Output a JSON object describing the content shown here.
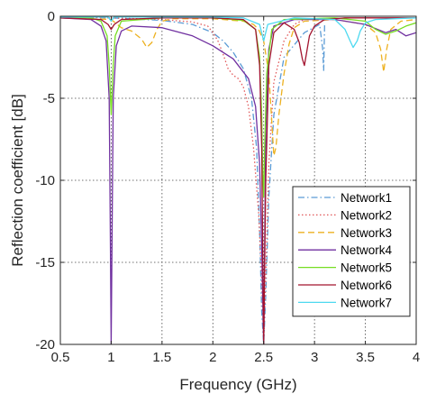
{
  "chart_data": {
    "type": "line",
    "title": "",
    "xlabel": "Frequency (GHz)",
    "ylabel": "Reflection coefficient [dB]",
    "xlim": [
      0.5,
      4
    ],
    "ylim": [
      -20,
      0
    ],
    "xticks": [
      0.5,
      1,
      1.5,
      2,
      2.5,
      3,
      3.5,
      4
    ],
    "xtick_labels": [
      "0.5",
      "1",
      "1.5",
      "2",
      "2.5",
      "3",
      "3.5",
      "4"
    ],
    "yticks": [
      0,
      -5,
      -10,
      -15,
      -20
    ],
    "ytick_labels": [
      "0",
      "-5",
      "-10",
      "-15",
      "-20"
    ],
    "grid": true,
    "legend_position": "bottom-right",
    "series": [
      {
        "name": "Network1",
        "color": "#5B9BD5",
        "dash": "dashdot",
        "x": [
          0.5,
          1.0,
          1.5,
          1.8,
          2.0,
          2.1,
          2.2,
          2.3,
          2.38,
          2.43,
          2.46,
          2.48,
          2.5,
          2.52,
          2.55,
          2.6,
          2.7,
          2.9,
          3.05,
          3.08,
          3.09,
          3.1
        ],
        "y": [
          -0.05,
          -0.1,
          -0.25,
          -0.5,
          -1.0,
          -1.5,
          -2.2,
          -3.2,
          -5.0,
          -8.0,
          -13.0,
          -18.0,
          -20.0,
          -17.0,
          -11.0,
          -6.0,
          -2.5,
          -1.0,
          -0.5,
          -2.0,
          -3.3,
          -0.4
        ]
      },
      {
        "name": "Network2",
        "color": "#E15759",
        "dash": "dotted",
        "x": [
          0.5,
          1.0,
          1.5,
          1.8,
          1.95,
          2.0,
          2.05,
          2.1,
          2.15,
          2.2,
          2.25,
          2.3,
          2.35,
          2.4,
          2.45,
          2.48,
          2.5,
          2.52,
          2.55,
          2.6,
          2.7,
          2.8,
          2.9
        ],
        "y": [
          -0.05,
          -0.1,
          -0.2,
          -0.35,
          -0.6,
          -1.0,
          -1.5,
          -2.3,
          -3.2,
          -3.6,
          -3.8,
          -4.3,
          -5.5,
          -8.0,
          -12.0,
          -16.0,
          -20.0,
          -16.0,
          -9.0,
          -4.0,
          -1.5,
          -0.5,
          -0.2
        ]
      },
      {
        "name": "Network3",
        "color": "#EDB120",
        "dash": "dashed",
        "x": [
          0.5,
          1.0,
          1.1,
          1.2,
          1.3,
          1.35,
          1.4,
          1.45,
          1.5,
          1.6,
          2.0,
          2.3,
          2.4,
          2.45,
          2.5,
          2.55,
          2.6,
          2.62,
          2.65,
          2.7,
          2.75,
          2.8,
          2.9,
          3.2,
          3.5,
          3.6,
          3.65,
          3.68,
          3.71,
          3.75,
          3.85,
          4.0
        ],
        "y": [
          -0.1,
          -0.2,
          -0.7,
          -0.9,
          -1.4,
          -1.9,
          -1.6,
          -0.8,
          -0.3,
          -0.15,
          -0.15,
          -0.3,
          -0.5,
          -0.8,
          -1.5,
          -3.5,
          -8.5,
          -8.0,
          -6.0,
          -3.5,
          -1.7,
          -0.7,
          -0.3,
          -0.2,
          -0.5,
          -1.0,
          -2.0,
          -3.4,
          -2.0,
          -0.8,
          -0.3,
          -0.2
        ]
      },
      {
        "name": "Network4",
        "color": "#7030A0",
        "dash": "solid",
        "x": [
          0.5,
          0.8,
          0.9,
          0.95,
          0.98,
          0.99,
          1.0,
          1.01,
          1.02,
          1.05,
          1.1,
          1.2,
          1.5,
          1.8,
          2.0,
          2.2,
          2.35,
          2.42,
          2.46,
          2.48,
          2.5,
          2.51,
          2.52,
          2.55,
          2.6,
          2.8,
          3.2,
          3.5,
          3.7,
          3.8,
          3.9,
          4.0
        ],
        "y": [
          -0.1,
          -0.2,
          -0.6,
          -1.5,
          -5.0,
          -12.0,
          -20.0,
          -12.0,
          -5.0,
          -1.8,
          -0.9,
          -0.6,
          -0.7,
          -1.2,
          -1.8,
          -2.6,
          -3.8,
          -5.5,
          -9.0,
          -14.0,
          -20.0,
          -14.0,
          -7.0,
          -2.0,
          -0.6,
          -0.2,
          -0.2,
          -0.5,
          -1.0,
          -0.8,
          -1.2,
          -1.0
        ]
      },
      {
        "name": "Network5",
        "color": "#77DD22",
        "dash": "solid",
        "x": [
          0.5,
          0.8,
          0.9,
          0.96,
          0.98,
          1.0,
          1.02,
          1.04,
          1.1,
          1.5,
          2.0,
          2.3,
          2.42,
          2.46,
          2.48,
          2.49,
          2.5,
          2.51,
          2.53,
          2.58,
          2.7,
          3.2,
          3.5,
          3.6,
          3.7,
          3.8,
          3.9,
          4.0
        ],
        "y": [
          -0.05,
          -0.1,
          -0.3,
          -1.2,
          -3.0,
          -6.0,
          -3.0,
          -1.2,
          -0.3,
          -0.1,
          -0.1,
          -0.25,
          -0.8,
          -2.5,
          -6.0,
          -9.5,
          -11.0,
          -8.0,
          -3.5,
          -0.8,
          -0.2,
          -0.1,
          -0.3,
          -0.8,
          -1.1,
          -0.9,
          -0.6,
          -0.4
        ]
      },
      {
        "name": "Network6",
        "color": "#A2142F",
        "dash": "solid",
        "x": [
          0.5,
          0.9,
          0.97,
          1.0,
          1.03,
          1.1,
          1.5,
          2.0,
          2.3,
          2.42,
          2.46,
          2.48,
          2.5,
          2.52,
          2.55,
          2.6,
          2.7,
          2.8,
          2.85,
          2.88,
          2.9,
          2.92,
          2.95,
          3.0,
          3.1,
          3.3,
          3.6,
          4.0
        ],
        "y": [
          -0.1,
          -0.2,
          -0.5,
          -0.8,
          -0.5,
          -0.2,
          -0.1,
          -0.1,
          -0.2,
          -0.8,
          -3.0,
          -8.0,
          -20.0,
          -10.0,
          -3.0,
          -1.0,
          -0.4,
          -0.8,
          -1.6,
          -2.6,
          -3.0,
          -2.3,
          -1.2,
          -0.6,
          -0.2,
          -0.1,
          -0.1,
          -0.1
        ]
      },
      {
        "name": "Network7",
        "color": "#4DD9F0",
        "dash": "solid",
        "x": [
          0.5,
          0.97,
          1.0,
          1.03,
          1.5,
          2.0,
          2.3,
          2.46,
          2.5,
          2.54,
          2.8,
          3.2,
          3.3,
          3.35,
          3.38,
          3.42,
          3.45,
          3.5,
          3.6,
          4.0
        ],
        "y": [
          -0.05,
          -0.05,
          -0.3,
          -0.05,
          -0.05,
          -0.05,
          -0.1,
          -0.5,
          -1.5,
          -0.5,
          -0.1,
          -0.2,
          -0.8,
          -1.5,
          -1.9,
          -1.5,
          -0.9,
          -0.4,
          -0.2,
          -0.1
        ]
      }
    ]
  }
}
